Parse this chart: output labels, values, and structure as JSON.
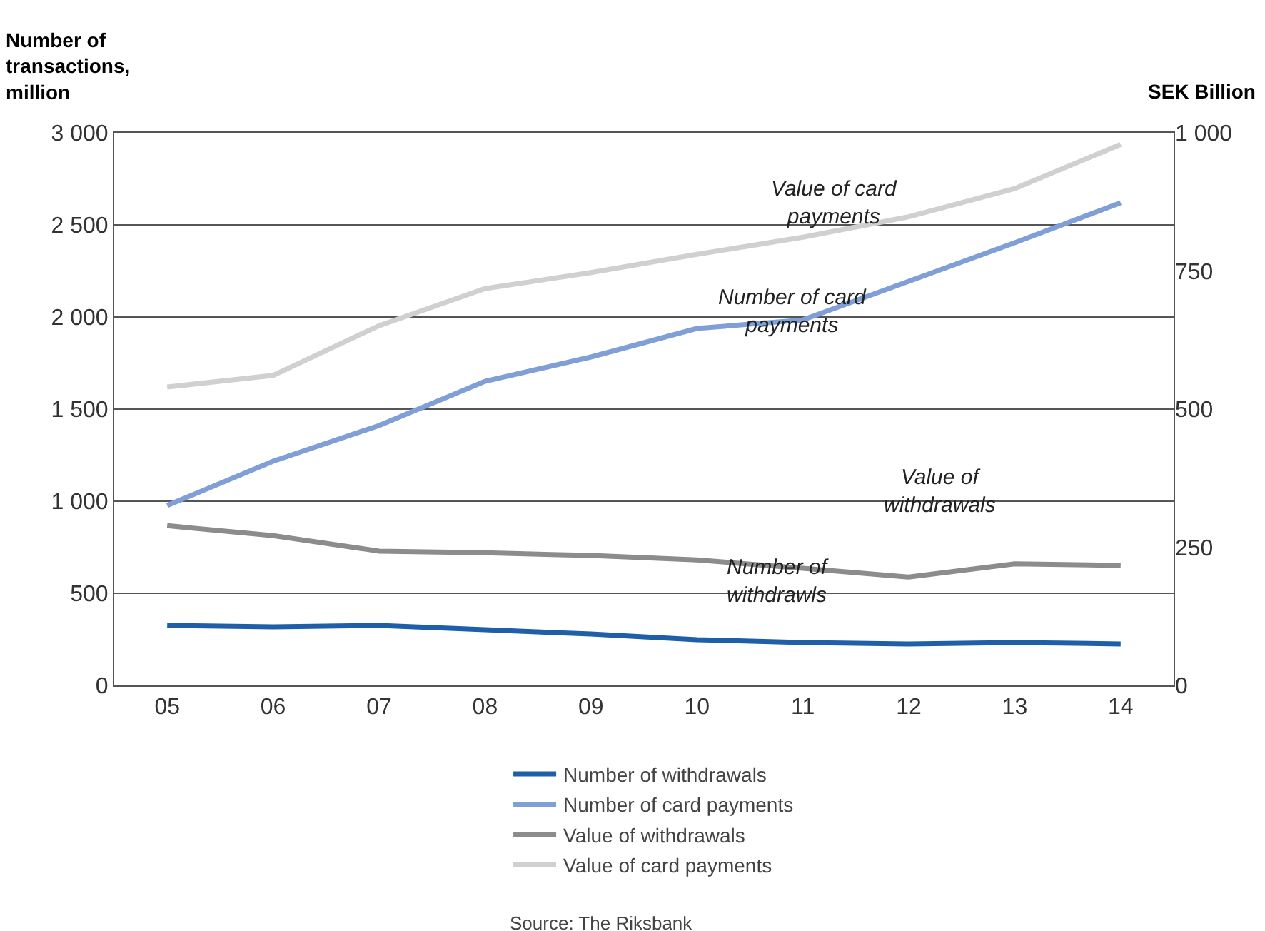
{
  "chart_data": {
    "type": "line",
    "ylabel": "Number of transactions, million",
    "y2label": "SEK Billion",
    "categories": [
      "05",
      "06",
      "07",
      "08",
      "09",
      "10",
      "11",
      "12",
      "13",
      "14"
    ],
    "series": [
      {
        "name": "Number of withdrawals",
        "color": "#1f5fa8",
        "values": [
          326,
          318,
          326,
          302,
          279,
          248,
          233,
          225,
          233,
          225
        ]
      },
      {
        "name": "Number of card payments",
        "color": "#7f9fd6",
        "values": [
          977,
          1217,
          1411,
          1651,
          1783,
          1938,
          1984,
          2194,
          2403,
          2620
        ]
      },
      {
        "name": "Value of withdrawals",
        "color": "#8c8c8c",
        "axis": "y2",
        "values": [
          289,
          271,
          243,
          240,
          235,
          227,
          212,
          196,
          220,
          217
        ]
      },
      {
        "name": "Value of card payments",
        "color": "#d0d0d0",
        "axis": "y2",
        "values": [
          540,
          561,
          651,
          718,
          747,
          780,
          811,
          848,
          899,
          979
        ]
      }
    ],
    "ylim": [
      0,
      3000
    ],
    "yticks": [
      0,
      500,
      {
        "value": 1000,
        "label": "1 000"
      },
      {
        "value": 1500,
        "label": "1 500"
      },
      {
        "value": 2000,
        "label": "2 000"
      },
      {
        "value": 2500,
        "label": "2 500"
      },
      {
        "value": 3000,
        "label": "3 000"
      }
    ],
    "y2lim": [
      0,
      1000
    ],
    "y2ticks": [
      0,
      250,
      500,
      750,
      {
        "value": 1000,
        "label": "1 000"
      }
    ],
    "grid": "y",
    "legend": "bottom",
    "marker": "none",
    "line_style": "solid",
    "annotations": [
      "Value of card payments",
      "Number of card payments",
      "Value of withdrawals",
      "Number of withdrawls",
      "Source: The Riksbank"
    ]
  }
}
